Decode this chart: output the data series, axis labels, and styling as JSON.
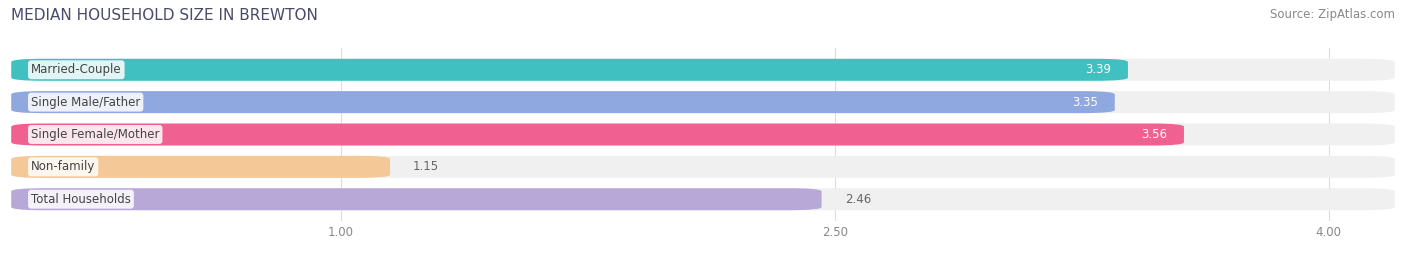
{
  "title": "MEDIAN HOUSEHOLD SIZE IN BREWTON",
  "source": "Source: ZipAtlas.com",
  "categories": [
    "Married-Couple",
    "Single Male/Father",
    "Single Female/Mother",
    "Non-family",
    "Total Households"
  ],
  "values": [
    3.39,
    3.35,
    3.56,
    1.15,
    2.46
  ],
  "bar_colors": [
    "#40c0c0",
    "#90a8e0",
    "#f06090",
    "#f5c898",
    "#b8a8d8"
  ],
  "label_colors": [
    "white",
    "white",
    "white",
    "#888888",
    "#888888"
  ],
  "xlim_data": [
    0.0,
    4.2
  ],
  "x_axis_start": 0.0,
  "xticks": [
    1.0,
    2.5,
    4.0
  ],
  "background_color": "#ffffff",
  "bar_bg_color": "#f0f0f0",
  "title_fontsize": 11,
  "source_fontsize": 8.5,
  "bar_label_fontsize": 8.5,
  "cat_label_fontsize": 8.5
}
